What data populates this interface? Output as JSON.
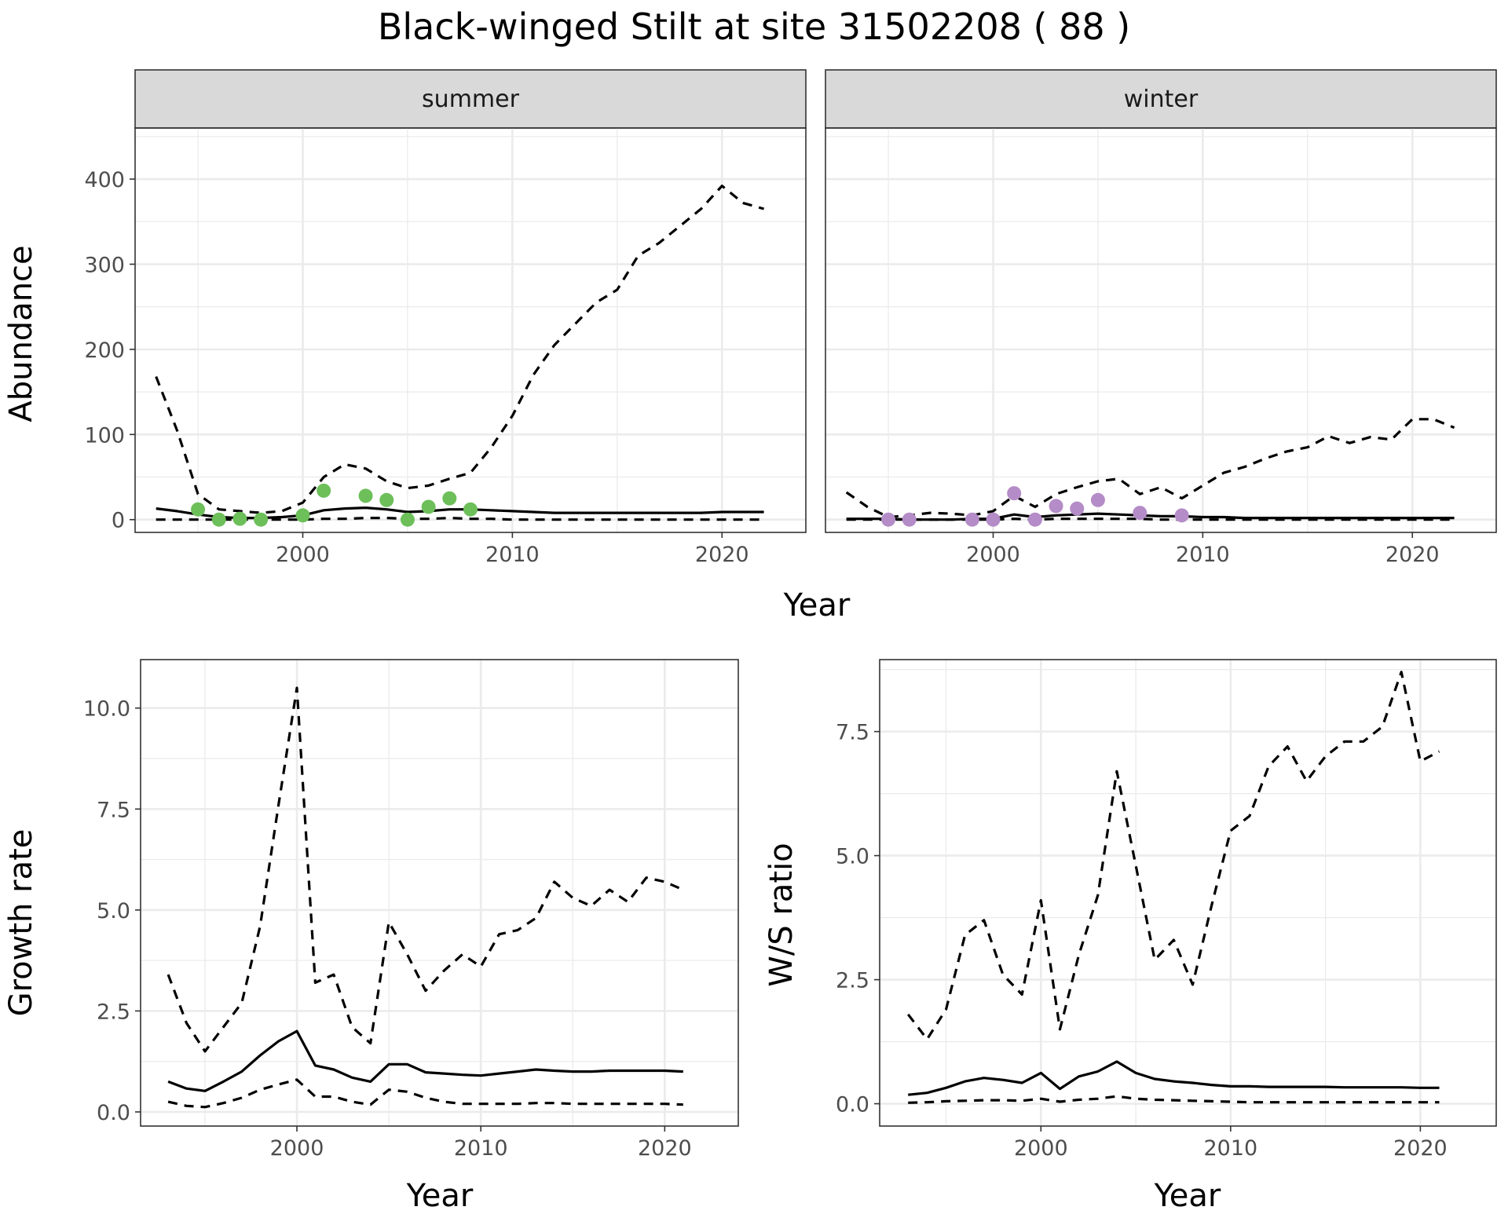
{
  "figure": {
    "title": "Black-winged Stilt at site 31502208 ( 88 )"
  },
  "colors": {
    "summer_points": "#6dbf5a",
    "winter_points": "#b48cc7",
    "line": "#000000",
    "strip_fill": "#d9d9d9",
    "grid": "#ebebeb"
  },
  "chart_data": [
    {
      "id": "abundance_summer",
      "type": "line",
      "facet_label": "summer",
      "ylabel": "Abundance",
      "xlabel": "Year",
      "xlim": [
        1992,
        2024
      ],
      "ylim": [
        -15,
        460
      ],
      "xticks": [
        2000,
        2010,
        2020
      ],
      "yticks": [
        0,
        100,
        200,
        300,
        400
      ],
      "series": [
        {
          "style": "solid",
          "x": [
            1993,
            1994,
            1995,
            1996,
            1997,
            1998,
            1999,
            2000,
            2001,
            2002,
            2003,
            2004,
            2005,
            2006,
            2007,
            2008,
            2009,
            2010,
            2011,
            2012,
            2013,
            2014,
            2015,
            2016,
            2017,
            2018,
            2019,
            2020,
            2021,
            2022
          ],
          "values": [
            13,
            10,
            6,
            3,
            2,
            2,
            3,
            5,
            11,
            13,
            14,
            12,
            9,
            10,
            12,
            12,
            11,
            10,
            9,
            8,
            8,
            8,
            8,
            8,
            8,
            8,
            8,
            9,
            9,
            9
          ]
        },
        {
          "style": "dashed",
          "x": [
            1993,
            1994,
            1995,
            1996,
            1997,
            1998,
            1999,
            2000,
            2001,
            2002,
            2003,
            2004,
            2005,
            2006,
            2007,
            2008,
            2009,
            2010,
            2011,
            2012,
            2013,
            2014,
            2015,
            2016,
            2017,
            2018,
            2019,
            2020,
            2021,
            2022
          ],
          "values": [
            168,
            105,
            30,
            12,
            10,
            8,
            10,
            20,
            50,
            65,
            60,
            45,
            37,
            40,
            48,
            55,
            85,
            122,
            170,
            205,
            230,
            255,
            270,
            310,
            325,
            345,
            365,
            392,
            372,
            365
          ]
        },
        {
          "style": "dashed",
          "x": [
            1993,
            1994,
            1995,
            1996,
            1997,
            1998,
            1999,
            2000,
            2001,
            2002,
            2003,
            2004,
            2005,
            2006,
            2007,
            2008,
            2009,
            2010,
            2011,
            2012,
            2013,
            2014,
            2015,
            2016,
            2017,
            2018,
            2019,
            2020,
            2021,
            2022
          ],
          "values": [
            0,
            0,
            0,
            0,
            0,
            0,
            0,
            0,
            1,
            1,
            2,
            2,
            1,
            1,
            2,
            1,
            1,
            0,
            0,
            0,
            0,
            0,
            0,
            0,
            0,
            0,
            0,
            0,
            0,
            0
          ]
        }
      ],
      "points": {
        "x": [
          1995,
          1996,
          1997,
          1998,
          2000,
          2001,
          2003,
          2004,
          2005,
          2006,
          2007,
          2008
        ],
        "y": [
          12,
          0,
          1,
          0,
          5,
          34,
          28,
          23,
          0,
          15,
          25,
          12
        ]
      }
    },
    {
      "id": "abundance_winter",
      "type": "line",
      "facet_label": "winter",
      "xlabel": "Year",
      "xlim": [
        1992,
        2024
      ],
      "ylim": [
        -15,
        460
      ],
      "xticks": [
        2000,
        2010,
        2020
      ],
      "series": [
        {
          "style": "solid",
          "x": [
            1993,
            1994,
            1995,
            1996,
            1997,
            1998,
            1999,
            2000,
            2001,
            2002,
            2003,
            2004,
            2005,
            2006,
            2007,
            2008,
            2009,
            2010,
            2011,
            2012,
            2013,
            2014,
            2015,
            2016,
            2017,
            2018,
            2019,
            2020,
            2021,
            2022
          ],
          "values": [
            1,
            1,
            1,
            0,
            0,
            0,
            1,
            1,
            6,
            3,
            5,
            6,
            7,
            6,
            5,
            4,
            4,
            3,
            3,
            2,
            2,
            2,
            2,
            2,
            2,
            2,
            2,
            2,
            2,
            2
          ]
        },
        {
          "style": "dashed",
          "x": [
            1993,
            1994,
            1995,
            1996,
            1997,
            1998,
            1999,
            2000,
            2001,
            2002,
            2003,
            2004,
            2005,
            2006,
            2007,
            2008,
            2009,
            2010,
            2011,
            2012,
            2013,
            2014,
            2015,
            2016,
            2017,
            2018,
            2019,
            2020,
            2021,
            2022
          ],
          "values": [
            32,
            15,
            3,
            5,
            8,
            7,
            5,
            10,
            28,
            15,
            30,
            38,
            45,
            48,
            30,
            38,
            25,
            40,
            55,
            62,
            72,
            80,
            85,
            98,
            90,
            97,
            94,
            118,
            118,
            108
          ]
        },
        {
          "style": "dashed",
          "x": [
            1993,
            1994,
            1995,
            1996,
            1997,
            1998,
            1999,
            2000,
            2001,
            2002,
            2003,
            2004,
            2005,
            2006,
            2007,
            2008,
            2009,
            2010,
            2011,
            2012,
            2013,
            2014,
            2015,
            2016,
            2017,
            2018,
            2019,
            2020,
            2021,
            2022
          ],
          "values": [
            0,
            0,
            0,
            0,
            0,
            0,
            0,
            0,
            1,
            0,
            1,
            1,
            1,
            1,
            1,
            0,
            0,
            0,
            0,
            0,
            0,
            0,
            0,
            0,
            0,
            0,
            0,
            0,
            0,
            0
          ]
        }
      ],
      "points": {
        "x": [
          1995,
          1996,
          1999,
          2000,
          2001,
          2002,
          2003,
          2004,
          2005,
          2007,
          2009
        ],
        "y": [
          0,
          0,
          0,
          0,
          31,
          0,
          16,
          13,
          23,
          8,
          5
        ]
      }
    },
    {
      "id": "growth_rate",
      "type": "line",
      "ylabel": "Growth rate",
      "xlabel": "Year",
      "xlim": [
        1991.5,
        2024
      ],
      "ylim": [
        -0.35,
        11.2
      ],
      "xticks": [
        2000,
        2010,
        2020
      ],
      "yticks": [
        0.0,
        2.5,
        5.0,
        7.5,
        10.0
      ],
      "ytick_labels": [
        "0.0",
        "2.5",
        "5.0",
        "7.5",
        "10.0"
      ],
      "series": [
        {
          "style": "solid",
          "x": [
            1993,
            1994,
            1995,
            1996,
            1997,
            1998,
            1999,
            2000,
            2001,
            2002,
            2003,
            2004,
            2005,
            2006,
            2007,
            2008,
            2009,
            2010,
            2011,
            2012,
            2013,
            2014,
            2015,
            2016,
            2017,
            2018,
            2019,
            2020,
            2021
          ],
          "values": [
            0.75,
            0.58,
            0.52,
            0.75,
            1.0,
            1.4,
            1.75,
            2.0,
            1.15,
            1.05,
            0.85,
            0.75,
            1.18,
            1.18,
            0.98,
            0.95,
            0.92,
            0.9,
            0.95,
            1.0,
            1.05,
            1.02,
            1.0,
            1.0,
            1.02,
            1.02,
            1.02,
            1.02,
            1.0
          ]
        },
        {
          "style": "dashed",
          "x": [
            1993,
            1994,
            1995,
            1996,
            1997,
            1998,
            1999,
            2000,
            2001,
            2002,
            2003,
            2004,
            2005,
            2006,
            2007,
            2008,
            2009,
            2010,
            2011,
            2012,
            2013,
            2014,
            2015,
            2016,
            2017,
            2018,
            2019,
            2020,
            2021
          ],
          "values": [
            3.4,
            2.2,
            1.5,
            2.1,
            2.7,
            4.6,
            7.6,
            10.5,
            3.2,
            3.4,
            2.1,
            1.7,
            4.7,
            3.9,
            3.0,
            3.5,
            3.9,
            3.6,
            4.4,
            4.5,
            4.8,
            5.7,
            5.3,
            5.1,
            5.5,
            5.2,
            5.8,
            5.7,
            5.5
          ]
        },
        {
          "style": "dashed",
          "x": [
            1993,
            1994,
            1995,
            1996,
            1997,
            1998,
            1999,
            2000,
            2001,
            2002,
            2003,
            2004,
            2005,
            2006,
            2007,
            2008,
            2009,
            2010,
            2011,
            2012,
            2013,
            2014,
            2015,
            2016,
            2017,
            2018,
            2019,
            2020,
            2021
          ],
          "values": [
            0.25,
            0.15,
            0.12,
            0.22,
            0.35,
            0.55,
            0.68,
            0.8,
            0.38,
            0.38,
            0.25,
            0.18,
            0.55,
            0.5,
            0.35,
            0.25,
            0.2,
            0.2,
            0.2,
            0.2,
            0.22,
            0.22,
            0.2,
            0.2,
            0.2,
            0.2,
            0.2,
            0.2,
            0.18
          ]
        }
      ]
    },
    {
      "id": "ws_ratio",
      "type": "line",
      "ylabel": "W/S ratio",
      "xlabel": "Year",
      "xlim": [
        1991.5,
        2024
      ],
      "ylim": [
        -0.45,
        8.95
      ],
      "xticks": [
        2000,
        2010,
        2020
      ],
      "yticks": [
        0.0,
        2.5,
        5.0,
        7.5
      ],
      "ytick_labels": [
        "0.0",
        "2.5",
        "5.0",
        "7.5"
      ],
      "series": [
        {
          "style": "solid",
          "x": [
            1993,
            1994,
            1995,
            1996,
            1997,
            1998,
            1999,
            2000,
            2001,
            2002,
            2003,
            2004,
            2005,
            2006,
            2007,
            2008,
            2009,
            2010,
            2011,
            2012,
            2013,
            2014,
            2015,
            2016,
            2017,
            2018,
            2019,
            2020,
            2021
          ],
          "values": [
            0.18,
            0.22,
            0.32,
            0.45,
            0.52,
            0.48,
            0.42,
            0.62,
            0.3,
            0.55,
            0.65,
            0.85,
            0.62,
            0.5,
            0.45,
            0.42,
            0.38,
            0.35,
            0.35,
            0.34,
            0.34,
            0.34,
            0.34,
            0.33,
            0.33,
            0.33,
            0.33,
            0.32,
            0.32
          ]
        },
        {
          "style": "dashed",
          "x": [
            1993,
            1994,
            1995,
            1996,
            1997,
            1998,
            1999,
            2000,
            2001,
            2002,
            2003,
            2004,
            2005,
            2006,
            2007,
            2008,
            2009,
            2010,
            2011,
            2012,
            2013,
            2014,
            2015,
            2016,
            2017,
            2018,
            2019,
            2020,
            2021
          ],
          "values": [
            1.8,
            1.3,
            1.9,
            3.4,
            3.7,
            2.6,
            2.2,
            4.1,
            1.5,
            3.0,
            4.2,
            6.7,
            4.8,
            2.9,
            3.3,
            2.4,
            4.0,
            5.5,
            5.8,
            6.8,
            7.2,
            6.5,
            7.0,
            7.3,
            7.3,
            7.6,
            8.7,
            6.9,
            7.1
          ]
        },
        {
          "style": "dashed",
          "x": [
            1993,
            1994,
            1995,
            1996,
            1997,
            1998,
            1999,
            2000,
            2001,
            2002,
            2003,
            2004,
            2005,
            2006,
            2007,
            2008,
            2009,
            2010,
            2011,
            2012,
            2013,
            2014,
            2015,
            2016,
            2017,
            2018,
            2019,
            2020,
            2021
          ],
          "values": [
            0.02,
            0.03,
            0.05,
            0.06,
            0.07,
            0.07,
            0.06,
            0.1,
            0.04,
            0.08,
            0.1,
            0.15,
            0.1,
            0.08,
            0.07,
            0.06,
            0.05,
            0.04,
            0.03,
            0.03,
            0.03,
            0.03,
            0.03,
            0.03,
            0.03,
            0.03,
            0.03,
            0.03,
            0.03
          ]
        }
      ]
    }
  ]
}
